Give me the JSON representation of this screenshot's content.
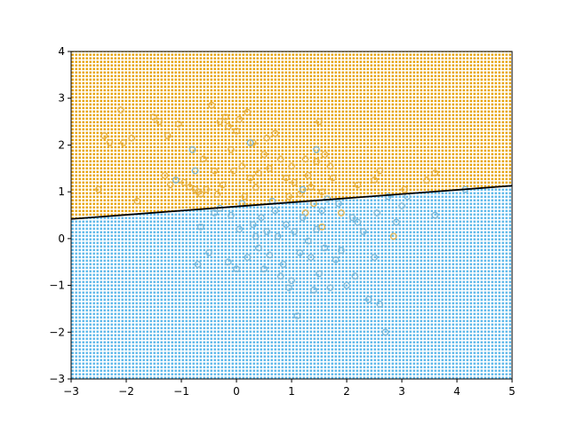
{
  "chart_data": {
    "type": "scatter",
    "title": "",
    "xlabel": "",
    "ylabel": "",
    "xlim": [
      -3,
      5
    ],
    "ylim": [
      -3,
      4
    ],
    "x_ticks": [
      -3,
      -2,
      -1,
      0,
      1,
      2,
      3,
      4,
      5
    ],
    "y_ticks": [
      -3,
      -2,
      -1,
      0,
      1,
      2,
      3,
      4
    ],
    "x_tick_labels": [
      "−3",
      "−2",
      "−1",
      "0",
      "1",
      "2",
      "3",
      "4",
      "5"
    ],
    "y_tick_labels": [
      "−3",
      "−2",
      "−1",
      "0",
      "1",
      "2",
      "3",
      "4"
    ],
    "grid": false,
    "legend": "none",
    "colors": {
      "class_upper": "#e69f00",
      "class_lower": "#56b4e9",
      "boundary": "#000000",
      "marker_edge_upper": "#e6b34d",
      "marker_edge_lower": "#7fb8d6"
    },
    "decision_boundary": {
      "x": [
        -3,
        5
      ],
      "y": [
        0.42,
        1.13
      ]
    },
    "series": [
      {
        "points": [
          [
            -2.5,
            1.05
          ],
          [
            -2.4,
            2.2
          ],
          [
            -2.3,
            2.05
          ],
          [
            -2.1,
            2.75
          ],
          [
            -2.05,
            2.05
          ],
          [
            -1.9,
            2.15
          ],
          [
            -1.8,
            0.8
          ],
          [
            -1.5,
            2.6
          ],
          [
            -1.4,
            2.5
          ],
          [
            -1.3,
            1.35
          ],
          [
            -1.25,
            2.2
          ],
          [
            -1.2,
            1.15
          ],
          [
            -1.05,
            2.45
          ],
          [
            -0.95,
            1.2
          ],
          [
            -0.85,
            1.1
          ],
          [
            -0.75,
            1.05
          ],
          [
            -0.7,
            1.0
          ],
          [
            -0.65,
            0.95
          ],
          [
            -0.6,
            1.7
          ],
          [
            -0.55,
            1.05
          ],
          [
            -0.45,
            2.85
          ],
          [
            -0.4,
            1.45
          ],
          [
            -0.35,
            0.95
          ],
          [
            -0.3,
            2.5
          ],
          [
            -0.25,
            1.15
          ],
          [
            -0.2,
            2.6
          ],
          [
            -0.15,
            2.4
          ],
          [
            -0.1,
            1.9
          ],
          [
            -0.05,
            1.45
          ],
          [
            0.0,
            2.3
          ],
          [
            0.05,
            2.55
          ],
          [
            0.1,
            1.55
          ],
          [
            0.15,
            0.9
          ],
          [
            0.2,
            2.7
          ],
          [
            0.25,
            1.3
          ],
          [
            0.3,
            2.05
          ],
          [
            0.35,
            1.1
          ],
          [
            0.4,
            1.4
          ],
          [
            0.5,
            1.8
          ],
          [
            0.55,
            2.15
          ],
          [
            0.6,
            1.5
          ],
          [
            0.7,
            2.25
          ],
          [
            0.8,
            1.7
          ],
          [
            0.9,
            1.3
          ],
          [
            1.0,
            1.55
          ],
          [
            1.05,
            1.2
          ],
          [
            1.15,
            0.95
          ],
          [
            1.25,
            1.7
          ],
          [
            1.3,
            1.35
          ],
          [
            1.35,
            1.1
          ],
          [
            1.45,
            1.65
          ],
          [
            1.5,
            2.5
          ],
          [
            1.55,
            1.0
          ],
          [
            1.6,
            1.8
          ],
          [
            1.7,
            1.55
          ],
          [
            1.75,
            1.3
          ],
          [
            2.2,
            1.15
          ],
          [
            2.5,
            1.25
          ],
          [
            2.6,
            1.45
          ],
          [
            3.05,
            1.05
          ],
          [
            3.45,
            1.25
          ],
          [
            3.6,
            1.4
          ],
          [
            1.4,
            0.75
          ],
          [
            1.25,
            0.55
          ],
          [
            0.95,
            0.9
          ],
          [
            1.55,
            0.25
          ],
          [
            1.9,
            0.55
          ],
          [
            2.85,
            0.05
          ]
        ]
      },
      {
        "points": [
          [
            -1.1,
            1.25
          ],
          [
            -0.8,
            1.9
          ],
          [
            -0.75,
            1.45
          ],
          [
            -0.7,
            -0.55
          ],
          [
            -0.65,
            0.25
          ],
          [
            -0.5,
            -0.3
          ],
          [
            -0.4,
            0.55
          ],
          [
            -0.3,
            0.65
          ],
          [
            -0.15,
            -0.5
          ],
          [
            -0.1,
            0.5
          ],
          [
            0.0,
            -0.65
          ],
          [
            0.05,
            0.2
          ],
          [
            0.1,
            0.75
          ],
          [
            0.2,
            -0.4
          ],
          [
            0.3,
            0.3
          ],
          [
            0.35,
            0.05
          ],
          [
            0.4,
            -0.2
          ],
          [
            0.45,
            0.45
          ],
          [
            0.5,
            -0.65
          ],
          [
            0.55,
            0.15
          ],
          [
            0.6,
            -0.35
          ],
          [
            0.7,
            0.6
          ],
          [
            0.75,
            0.05
          ],
          [
            0.8,
            -0.8
          ],
          [
            0.85,
            -0.55
          ],
          [
            0.9,
            0.3
          ],
          [
            0.95,
            -1.05
          ],
          [
            1.0,
            -0.9
          ],
          [
            1.05,
            0.15
          ],
          [
            1.1,
            -1.65
          ],
          [
            1.15,
            -0.3
          ],
          [
            1.2,
            0.45
          ],
          [
            1.3,
            -0.05
          ],
          [
            1.35,
            -0.4
          ],
          [
            1.4,
            -1.1
          ],
          [
            1.45,
            0.2
          ],
          [
            1.5,
            -0.75
          ],
          [
            1.55,
            0.6
          ],
          [
            1.6,
            -0.2
          ],
          [
            1.65,
            0.85
          ],
          [
            1.7,
            -1.05
          ],
          [
            1.8,
            -0.45
          ],
          [
            1.85,
            0.75
          ],
          [
            1.9,
            -0.25
          ],
          [
            2.0,
            -1.0
          ],
          [
            2.1,
            0.45
          ],
          [
            2.15,
            -0.8
          ],
          [
            2.3,
            0.15
          ],
          [
            2.4,
            -1.3
          ],
          [
            2.5,
            -0.4
          ],
          [
            2.55,
            0.55
          ],
          [
            2.6,
            -1.4
          ],
          [
            2.7,
            -2.0
          ],
          [
            2.75,
            0.9
          ],
          [
            2.9,
            0.35
          ],
          [
            3.0,
            0.7
          ],
          [
            3.1,
            0.9
          ],
          [
            3.6,
            0.5
          ],
          [
            4.15,
            1.05
          ],
          [
            2.2,
            0.35
          ],
          [
            0.25,
            2.05
          ],
          [
            1.45,
            1.9
          ],
          [
            1.2,
            1.05
          ],
          [
            0.65,
            0.8
          ]
        ]
      }
    ]
  }
}
